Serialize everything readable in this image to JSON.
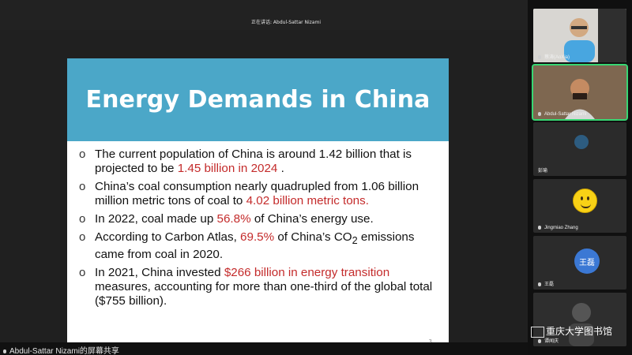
{
  "meeting": {
    "speaking_label": "正在讲话: Abdul-Sattar Nizami",
    "sharing_label": "Abdul-Sattar Nizami的屏幕共享"
  },
  "slide": {
    "title": "Energy Demands in China",
    "slide_number": "3",
    "bullets": [
      {
        "text_before": "The current population of China is around 1.42 billion that is projected to be ",
        "highlight": "1.45 billion in 2024",
        "text_after": "."
      },
      {
        "text_before": "China’s coal consumption nearly quadrupled from 1.06 billion million metric tons of coal to ",
        "highlight": "4.02 billion metric tons.",
        "text_after": ""
      },
      {
        "text_before": "In 2022, coal made up ",
        "highlight": "56.8%",
        "text_after": " of China’s energy use."
      },
      {
        "text_before": "According to Carbon Atlas, ",
        "highlight": "69.5%",
        "text_after": " of China’s CO",
        "subscript": "2",
        "text_after_2": " emissions came from coal in 2020."
      },
      {
        "text_before": "In 2021, China invested ",
        "highlight": "$266 billion in energy transition",
        "text_after": " measures, accounting for more than one-third of the global total ($755 billion)."
      }
    ]
  },
  "participants": [
    {
      "name": "蔡涛(AoXia)",
      "state": "camera",
      "active": false
    },
    {
      "name": "Abdul-Sattar Nizami",
      "state": "camera",
      "active": true
    },
    {
      "name": "彭瑜",
      "state": "avatar",
      "active": false
    },
    {
      "name": "Jingmiao Zhang",
      "state": "emoji",
      "active": false
    },
    {
      "name": "王磊",
      "state": "avatar",
      "active": false
    },
    {
      "name": "谭闻庆",
      "state": "camera",
      "active": false
    }
  ],
  "avatars": {
    "wang_text": "王磊"
  },
  "watermark": "重庆大学图书馆",
  "colors": {
    "accent": "#4ba7c8",
    "highlight": "#c42b2b",
    "active_speaker": "#37d673"
  }
}
